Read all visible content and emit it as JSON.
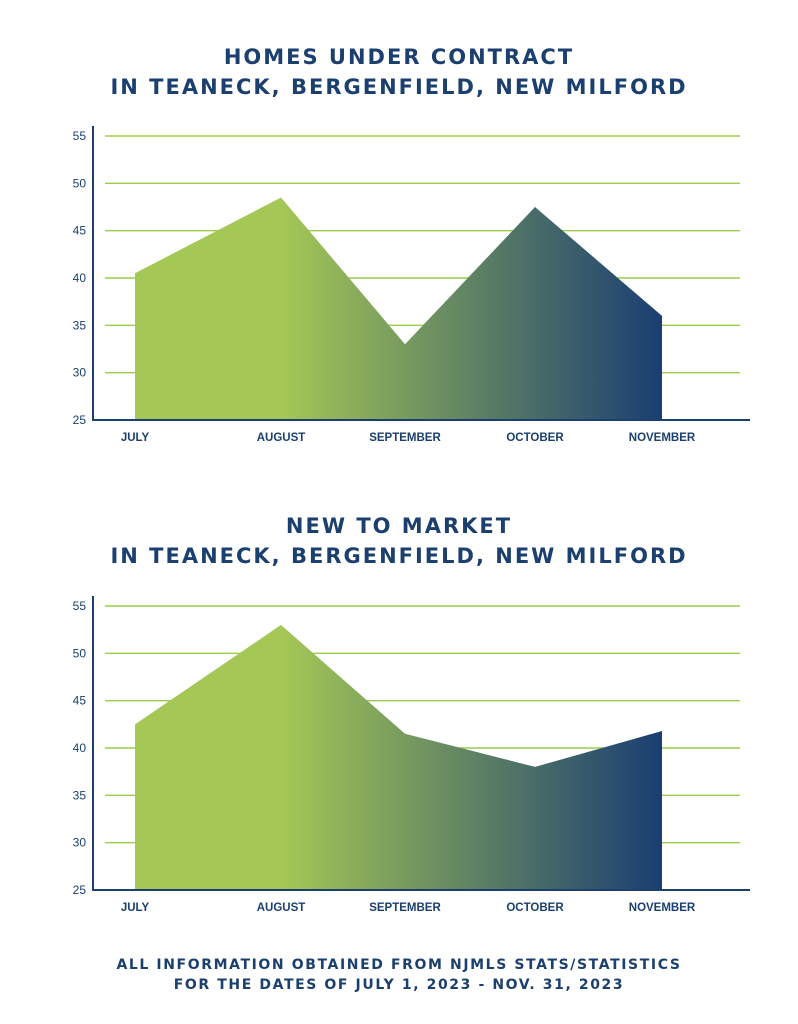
{
  "colors": {
    "grid": "#9ccd4a",
    "axis": "#1b3f6e",
    "text": "#1b3f6e",
    "gradient_start": "#a4c756",
    "gradient_end": "#1a3e72"
  },
  "footer": {
    "line1": "ALL INFORMATION OBTAINED FROM NJMLS STATS/STATISTICS",
    "line2": "FOR THE DATES OF JULY 1, 2023 - NOV. 31, 2023"
  },
  "chart_data": [
    {
      "type": "area",
      "title_lines": [
        "HOMES UNDER CONTRACT",
        "IN TEANECK, BERGENFIELD, NEW MILFORD"
      ],
      "categories": [
        "JULY",
        "AUGUST",
        "SEPTEMBER",
        "OCTOBER",
        "NOVEMBER"
      ],
      "values": [
        40.5,
        48.5,
        33,
        47.5,
        36
      ],
      "ylim": [
        25,
        55
      ],
      "yticks": [
        "25",
        "30",
        "35",
        "40",
        "45",
        "50",
        "55"
      ],
      "grid": true
    },
    {
      "type": "area",
      "title_lines": [
        "NEW TO MARKET",
        "IN TEANECK, BERGENFIELD, NEW MILFORD"
      ],
      "categories": [
        "JULY",
        "AUGUST",
        "SEPTEMBER",
        "OCTOBER",
        "NOVEMBER"
      ],
      "values": [
        42.5,
        53,
        41.5,
        38,
        41.8
      ],
      "ylim": [
        25,
        55
      ],
      "yticks": [
        "25",
        "30",
        "35",
        "40",
        "45",
        "50",
        "55"
      ],
      "grid": true
    }
  ]
}
